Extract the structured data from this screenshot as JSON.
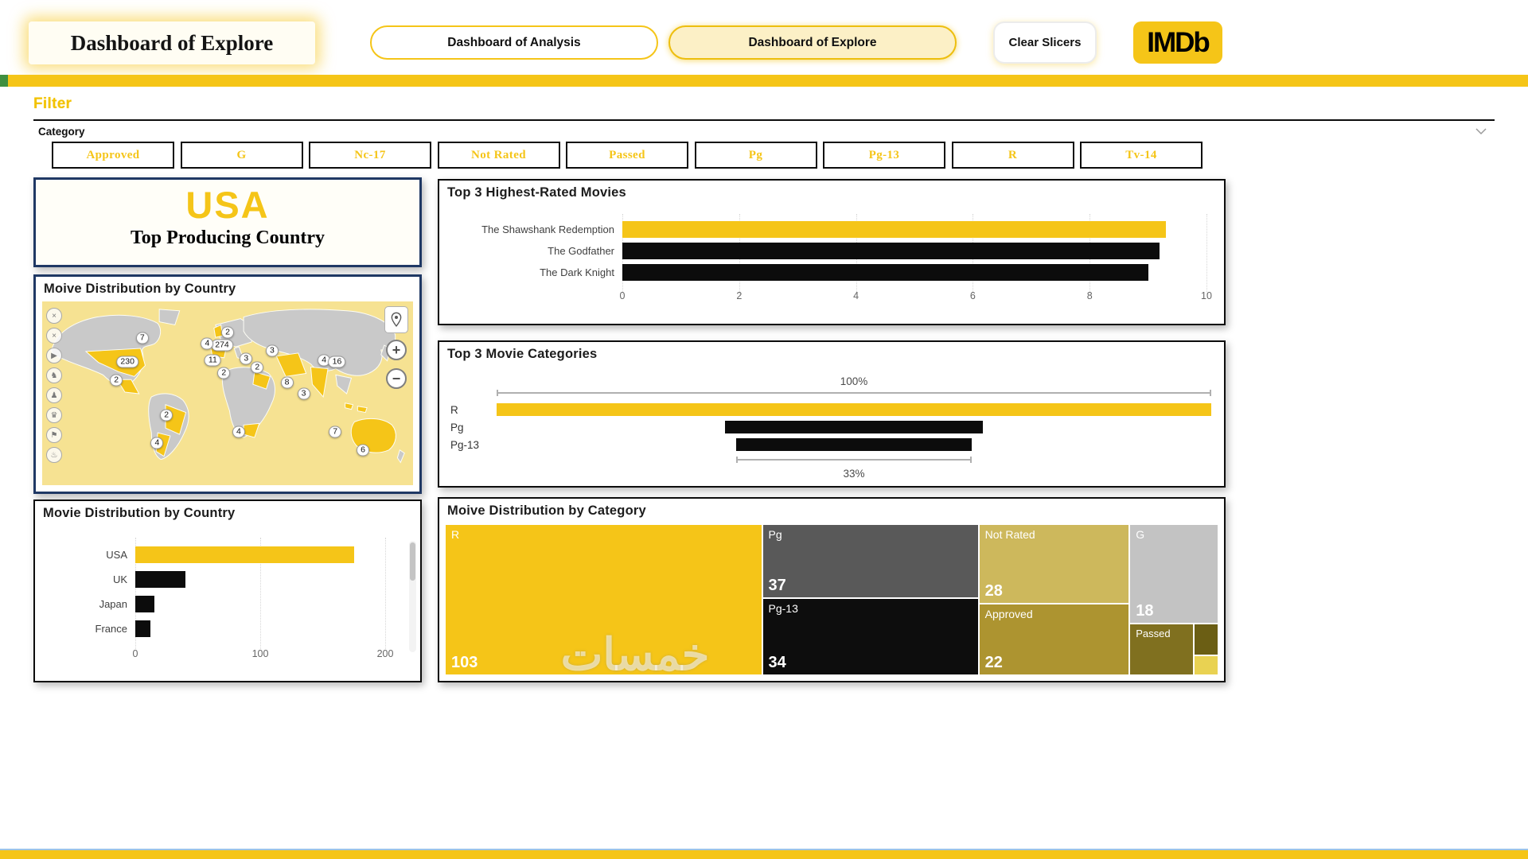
{
  "colors": {
    "brand_yellow": "#F5C518",
    "navy": "#1F3864",
    "bar_black": "#0C0C0C",
    "map_sea": "#F6E292",
    "map_land_gray": "#C9C9C9",
    "stripe_blue": "#9DC3E6",
    "stripe_green": "#3F8F3F"
  },
  "header": {
    "title": "Dashboard of Explore",
    "tabs": [
      {
        "label": "Dashboard of Analysis",
        "active": false
      },
      {
        "label": "Dashboard of Explore",
        "active": true
      }
    ],
    "clear_slicers_label": "Clear Slicers",
    "logo_text": "IMDb"
  },
  "filter": {
    "section_label": "Filter",
    "dropdown_label": "Category",
    "slicers": [
      "Approved",
      "G",
      "Nc-17",
      "Not Rated",
      "Passed",
      "Pg",
      "Pg-13",
      "R",
      "Tv-14"
    ]
  },
  "kpi_card": {
    "value": "USA",
    "caption": "Top Producing Country"
  },
  "map_card": {
    "title": "Moive Distribution by Country",
    "zoom_in_label": "+",
    "zoom_out_label": "−"
  },
  "watermark": "خمسات",
  "chart_data": [
    {
      "id": "top-3-highest-rated-movies",
      "type": "bar",
      "orientation": "horizontal",
      "title": "Top 3 Highest-Rated Movies",
      "categories": [
        "The Shawshank Redemption",
        "The Godfather",
        "The Dark Knight"
      ],
      "values": [
        9.3,
        9.2,
        9.0
      ],
      "bar_colors": [
        "#F5C518",
        "#0C0C0C",
        "#0C0C0C"
      ],
      "xlim": [
        0,
        10
      ],
      "xticks": [
        "0",
        "2",
        "4",
        "6",
        "8",
        "10"
      ],
      "grid": "vertical-dotted",
      "legend": "none"
    },
    {
      "id": "top-3-movie-categories",
      "type": "funnel",
      "title": "Top 3 Movie Categories",
      "categories": [
        "R",
        "Pg",
        "Pg-13"
      ],
      "values_percent": [
        100,
        36,
        33
      ],
      "bar_colors": [
        "#F5C518",
        "#0C0C0C",
        "#0C0C0C"
      ],
      "top_annotation": "100%",
      "bottom_annotation": "33%"
    },
    {
      "id": "movie-distribution-by-country",
      "type": "bar",
      "orientation": "horizontal",
      "title": "Movie Distribution by Country",
      "categories": [
        "USA",
        "UK",
        "Japan",
        "France"
      ],
      "values": [
        175,
        40,
        15,
        12
      ],
      "bar_colors": [
        "#F5C518",
        "#0C0C0C",
        "#0C0C0C",
        "#0C0C0C"
      ],
      "xlim": [
        0,
        200
      ],
      "xticks": [
        "0",
        "100",
        "200"
      ],
      "grid": "vertical-dotted",
      "scrollbar": true
    },
    {
      "id": "moive-distribution-by-category",
      "type": "treemap",
      "title": "Moive Distribution by Category",
      "items": [
        {
          "label": "R",
          "value": "103",
          "color": "#F5C518"
        },
        {
          "label": "Pg",
          "value": "37",
          "color": "#595959"
        },
        {
          "label": "Pg-13",
          "value": "34",
          "color": "#0D0D0D"
        },
        {
          "label": "Not Rated",
          "value": "28",
          "color": "#CDB85C"
        },
        {
          "label": "Approved",
          "value": "22",
          "color": "#AD9430"
        },
        {
          "label": "G",
          "value": "18",
          "color": "#C3C3C3"
        },
        {
          "label": "Passed",
          "value": "",
          "color": "#80701F"
        },
        {
          "label": "",
          "value": "",
          "color": "#6B5E14"
        },
        {
          "label": "",
          "value": "",
          "color": "#E9D252"
        }
      ]
    },
    {
      "id": "moive-distribution-by-country-map",
      "type": "map",
      "title": "Moive Distribution by Country",
      "bubble_values": [
        "7",
        "230",
        "2",
        "2",
        "274",
        "4",
        "11",
        "2",
        "3",
        "3",
        "2",
        "8",
        "3",
        "4",
        "16",
        "2",
        "4",
        "4",
        "7",
        "6"
      ]
    }
  ]
}
